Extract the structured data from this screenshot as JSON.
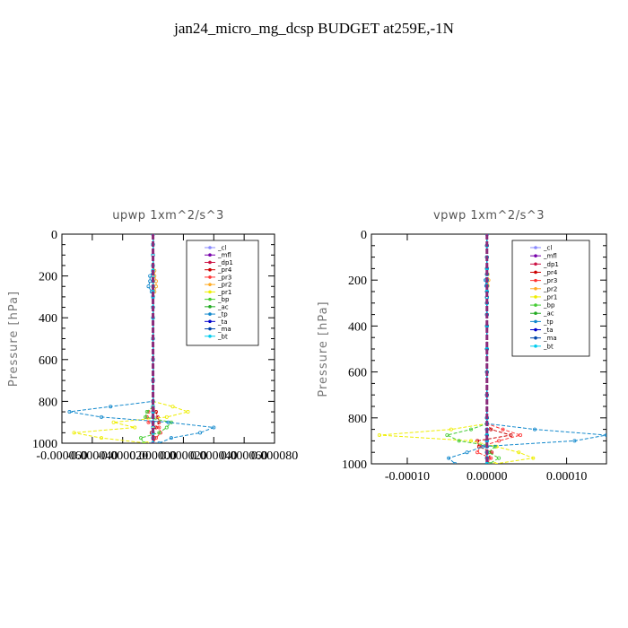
{
  "figure": {
    "title": "jan24_micro_mg_dcsp  BUDGET at259E,-1N"
  },
  "chart_data": [
    {
      "type": "line",
      "title": "upwp   1xm^2/s^3",
      "ylabel": "Pressure [hPa]",
      "xlim": [
        -6e-05,
        8e-05
      ],
      "ylim": [
        1000,
        0
      ],
      "x_ticks": [
        -6e-05,
        -4e-05,
        -2e-05,
        0.0,
        2e-05,
        4e-05,
        6e-05,
        8e-05
      ],
      "x_tick_labels": [
        "-0.000060",
        "-0.000040",
        "-0.000020",
        "0.000000",
        "0.000020",
        "0.000040",
        "0.000060",
        "0.000080"
      ],
      "y_ticks": [
        0,
        200,
        400,
        600,
        800,
        1000
      ],
      "legend": "top-right",
      "levels": [
        0,
        50,
        100,
        150,
        175,
        200,
        225,
        250,
        275,
        300,
        350,
        400,
        500,
        600,
        700,
        800,
        825,
        850,
        875,
        900,
        925,
        950,
        975,
        1000
      ],
      "series": [
        {
          "name": "_cl",
          "color": "#8888ff",
          "values": [
            0,
            0,
            0,
            0,
            0,
            0,
            0,
            0,
            0,
            0,
            0,
            0,
            0,
            0,
            0,
            0,
            0,
            0,
            0,
            0,
            0,
            0,
            0,
            0
          ]
        },
        {
          "name": "_mfl",
          "color": "#7700aa",
          "values": [
            0,
            0,
            0,
            0,
            0,
            0,
            0,
            0,
            0,
            0,
            0,
            0,
            0,
            0,
            0,
            0,
            0,
            0,
            0,
            0,
            0,
            0,
            0,
            0
          ]
        },
        {
          "name": "_dp1",
          "color": "#cc1144",
          "values": [
            0,
            0,
            0,
            0,
            0,
            0,
            0,
            0,
            0,
            0,
            0,
            0,
            0,
            0,
            0,
            0,
            0,
            0,
            0,
            0,
            0,
            0,
            0,
            0
          ]
        },
        {
          "name": "_pr4",
          "color": "#cc0000",
          "values": [
            0,
            0,
            0,
            0,
            0,
            0,
            0,
            0,
            0,
            0,
            0,
            0,
            0,
            0,
            0,
            0,
            0,
            2e-06,
            3e-06,
            4e-06,
            2e-06,
            -1e-06,
            1e-06,
            0
          ]
        },
        {
          "name": "_pr3",
          "color": "#ff3333",
          "values": [
            0,
            0,
            0,
            0,
            0,
            0,
            0,
            0,
            0,
            0,
            0,
            0,
            0,
            0,
            0,
            0,
            0,
            -3e-06,
            -4e-06,
            -3e-06,
            4e-06,
            5e-06,
            2e-06,
            0
          ]
        },
        {
          "name": "_pr2",
          "color": "#ffaa22",
          "values": [
            0,
            0,
            0,
            0,
            1e-06,
            1e-06,
            2e-06,
            2e-06,
            1e-06,
            0,
            0,
            0,
            0,
            0,
            0,
            0,
            0,
            0,
            0,
            0,
            0,
            0,
            0,
            0
          ]
        },
        {
          "name": "_pr1",
          "color": "#eeee00",
          "values": [
            0,
            0,
            0,
            0,
            0,
            0,
            0,
            0,
            0,
            0,
            0,
            0,
            0,
            0,
            0,
            0,
            1.3e-05,
            2.3e-05,
            9e-06,
            -2.6e-05,
            -1.2e-05,
            -5.2e-05,
            -3.4e-05,
            -4e-06
          ]
        },
        {
          "name": "_bp",
          "color": "#44cc33",
          "values": [
            0,
            0,
            0,
            0,
            0,
            0,
            0,
            0,
            0,
            0,
            0,
            0,
            0,
            0,
            0,
            0,
            0,
            -4e-06,
            -5e-06,
            1.2e-05,
            9e-06,
            4e-06,
            -8e-06,
            -6e-06
          ]
        },
        {
          "name": "_ac",
          "color": "#22aa22",
          "values": [
            0,
            0,
            0,
            0,
            0,
            0,
            0,
            0,
            0,
            0,
            0,
            0,
            0,
            0,
            0,
            0,
            0,
            0,
            0,
            0,
            0,
            0,
            0,
            0
          ]
        },
        {
          "name": "_tp",
          "color": "#1188cc",
          "values": [
            0,
            0,
            0,
            0,
            0,
            -2e-06,
            -2e-06,
            -3e-06,
            -1e-06,
            0,
            0,
            0,
            0,
            0,
            0,
            0,
            -2.8e-05,
            -5.5e-05,
            -3.4e-05,
            1e-05,
            4e-05,
            3.1e-05,
            1.2e-05,
            4e-06
          ]
        },
        {
          "name": "_ta",
          "color": "#0000cc",
          "values": [
            0,
            0,
            0,
            0,
            0,
            0,
            0,
            0,
            0,
            0,
            0,
            0,
            0,
            0,
            0,
            0,
            0,
            0,
            0,
            0,
            0,
            0,
            0,
            0
          ]
        },
        {
          "name": "_ma",
          "color": "#0044aa",
          "values": [
            0,
            0,
            0,
            0,
            0,
            0,
            0,
            0,
            0,
            0,
            0,
            0,
            0,
            0,
            0,
            0,
            0,
            0,
            0,
            0,
            0,
            0,
            0,
            0
          ]
        },
        {
          "name": "_bt",
          "color": "#00ccee",
          "values": [
            0,
            0,
            0,
            0,
            0,
            0,
            0,
            0,
            0,
            0,
            0,
            0,
            0,
            0,
            0,
            0,
            0,
            0,
            0,
            0,
            0,
            0,
            0,
            0
          ]
        }
      ]
    },
    {
      "type": "line",
      "title": "vpwp   1xm^2/s^3",
      "ylabel": "Pressure [hPa]",
      "xlim": [
        -0.000145,
        0.00015
      ],
      "ylim": [
        1000,
        0
      ],
      "x_ticks": [
        -0.0001,
        0.0,
        0.0001
      ],
      "x_tick_labels": [
        "-0.00010",
        "0.00000",
        "0.00010"
      ],
      "y_ticks": [
        0,
        200,
        400,
        600,
        800,
        1000
      ],
      "legend": "top-right",
      "levels": [
        0,
        50,
        100,
        150,
        175,
        200,
        225,
        250,
        275,
        300,
        350,
        400,
        500,
        600,
        700,
        800,
        825,
        850,
        875,
        900,
        925,
        950,
        975,
        1000
      ],
      "series": [
        {
          "name": "_cl",
          "color": "#8888ff",
          "values": [
            0,
            0,
            0,
            0,
            0,
            0,
            0,
            0,
            0,
            0,
            0,
            0,
            0,
            0,
            0,
            0,
            0,
            0,
            0,
            0,
            0,
            0,
            0,
            0
          ]
        },
        {
          "name": "_mfl",
          "color": "#7700aa",
          "values": [
            0,
            0,
            0,
            0,
            0,
            0,
            0,
            0,
            0,
            0,
            0,
            0,
            0,
            0,
            0,
            0,
            0,
            0,
            0,
            0,
            0,
            0,
            0,
            0
          ]
        },
        {
          "name": "_dp1",
          "color": "#cc1144",
          "values": [
            0,
            0,
            0,
            0,
            0,
            0,
            0,
            0,
            0,
            0,
            0,
            0,
            0,
            0,
            0,
            0,
            0,
            0,
            0,
            0,
            0,
            0,
            0,
            0
          ]
        },
        {
          "name": "_pr4",
          "color": "#cc0000",
          "values": [
            0,
            0,
            0,
            0,
            0,
            0,
            0,
            0,
            0,
            0,
            0,
            0,
            0,
            0,
            0,
            0,
            0,
            5e-06,
            3e-05,
            -1.2e-05,
            -1e-05,
            6e-06,
            2e-06,
            0
          ]
        },
        {
          "name": "_pr3",
          "color": "#ff3333",
          "values": [
            0,
            0,
            0,
            0,
            0,
            0,
            0,
            0,
            0,
            0,
            0,
            0,
            0,
            0,
            0,
            0,
            0,
            2e-05,
            4.2e-05,
            1.5e-05,
            -8e-06,
            -1.2e-05,
            5e-06,
            0
          ]
        },
        {
          "name": "_pr2",
          "color": "#ffaa22",
          "values": [
            0,
            0,
            0,
            0,
            1e-06,
            2e-06,
            1e-06,
            0,
            0,
            0,
            0,
            0,
            0,
            0,
            0,
            0,
            0,
            0,
            0,
            0,
            0,
            0,
            0,
            0
          ]
        },
        {
          "name": "_pr1",
          "color": "#eeee00",
          "values": [
            0,
            0,
            0,
            0,
            0,
            0,
            0,
            0,
            0,
            0,
            0,
            0,
            0,
            0,
            0,
            0,
            0,
            -4.5e-05,
            -0.000135,
            -2e-05,
            1.2e-05,
            4e-05,
            5.8e-05,
            1e-05
          ]
        },
        {
          "name": "_bp",
          "color": "#44cc33",
          "values": [
            0,
            0,
            0,
            0,
            0,
            0,
            0,
            0,
            0,
            0,
            0,
            0,
            0,
            0,
            0,
            0,
            0,
            -2e-05,
            -5e-05,
            -3.5e-05,
            1e-05,
            2e-06,
            1.5e-05,
            3e-06
          ]
        },
        {
          "name": "_ac",
          "color": "#22aa22",
          "values": [
            0,
            0,
            0,
            0,
            0,
            0,
            0,
            0,
            0,
            0,
            0,
            0,
            0,
            0,
            0,
            0,
            0,
            0,
            0,
            0,
            0,
            0,
            0,
            0
          ]
        },
        {
          "name": "_tp",
          "color": "#1188cc",
          "values": [
            0,
            0,
            0,
            0,
            0,
            -2e-06,
            -1e-06,
            0,
            0,
            0,
            0,
            0,
            0,
            0,
            0,
            0,
            0,
            6e-05,
            0.00015,
            0.00011,
            -5e-06,
            -2.5e-05,
            -4.8e-05,
            -4e-05
          ]
        },
        {
          "name": "_ta",
          "color": "#0000cc",
          "values": [
            0,
            0,
            0,
            0,
            0,
            0,
            0,
            0,
            0,
            0,
            0,
            0,
            0,
            0,
            0,
            0,
            0,
            0,
            0,
            0,
            0,
            0,
            0,
            0
          ]
        },
        {
          "name": "_ma",
          "color": "#0044aa",
          "values": [
            0,
            0,
            0,
            0,
            0,
            0,
            0,
            0,
            0,
            0,
            0,
            0,
            0,
            0,
            0,
            0,
            0,
            0,
            0,
            0,
            0,
            0,
            0,
            0
          ]
        },
        {
          "name": "_bt",
          "color": "#00ccee",
          "values": [
            0,
            0,
            0,
            0,
            0,
            0,
            0,
            0,
            0,
            0,
            0,
            0,
            0,
            0,
            0,
            0,
            0,
            0,
            0,
            0,
            0,
            0,
            0,
            0
          ]
        }
      ]
    }
  ]
}
